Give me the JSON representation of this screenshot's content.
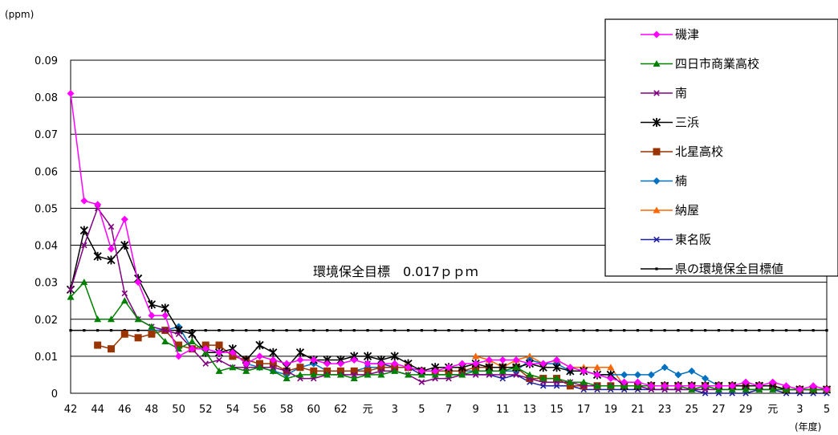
{
  "chart_data": {
    "type": "line",
    "ylabel": "(ppm)",
    "xlabel": "(年度)",
    "ylim": [
      0,
      0.09
    ],
    "y_ticks": [
      "0",
      "0.01",
      "0.02",
      "0.03",
      "0.04",
      "0.05",
      "0.06",
      "0.07",
      "0.08",
      "0.09"
    ],
    "y_tick_values": [
      0,
      0.01,
      0.02,
      0.03,
      0.04,
      0.05,
      0.06,
      0.07,
      0.08,
      0.09
    ],
    "grid": "horizontal",
    "legend_position": "top-right",
    "annotation": "環境保全目標　0.017ｐｐｍ",
    "categories": [
      "42",
      "43",
      "44",
      "45",
      "46",
      "47",
      "48",
      "49",
      "50",
      "51",
      "52",
      "53",
      "54",
      "55",
      "56",
      "57",
      "58",
      "59",
      "60",
      "61",
      "62",
      "63",
      "元",
      "2",
      "3",
      "4",
      "5",
      "6",
      "7",
      "8",
      "9",
      "10",
      "11",
      "12",
      "13",
      "14",
      "15",
      "16",
      "17",
      "18",
      "19",
      "20",
      "21",
      "22",
      "23",
      "24",
      "25",
      "26",
      "27",
      "28",
      "29",
      "30",
      "元",
      "2",
      "3",
      "4",
      "5"
    ],
    "x_tick_labels": [
      "42",
      "44",
      "46",
      "48",
      "50",
      "52",
      "54",
      "56",
      "58",
      "60",
      "62",
      "元",
      "3",
      "5",
      "7",
      "9",
      "11",
      "13",
      "15",
      "17",
      "19",
      "21",
      "23",
      "25",
      "27",
      "29",
      "元",
      "3",
      "5"
    ],
    "series": [
      {
        "name": "磯津",
        "color": "#ff00ff",
        "marker": "diamond",
        "values": [
          0.081,
          0.052,
          0.051,
          0.039,
          0.047,
          0.03,
          0.021,
          0.021,
          0.01,
          0.012,
          0.012,
          0.011,
          0.011,
          0.008,
          0.01,
          0.009,
          0.008,
          0.009,
          0.009,
          0.008,
          0.008,
          0.009,
          0.008,
          0.008,
          0.008,
          0.007,
          0.006,
          0.006,
          0.007,
          0.008,
          0.008,
          0.009,
          0.009,
          0.009,
          0.008,
          0.008,
          0.009,
          0.007,
          0.006,
          0.005,
          0.004,
          0.003,
          0.003,
          0.002,
          0.002,
          0.002,
          0.002,
          0.002,
          0.002,
          0.002,
          0.003,
          0.002,
          0.003,
          0.002,
          0.001,
          0.002,
          0.001
        ]
      },
      {
        "name": "四日市商業高校",
        "color": "#008000",
        "marker": "triangle",
        "values": [
          0.026,
          0.03,
          0.02,
          0.02,
          0.025,
          0.02,
          0.018,
          0.014,
          0.012,
          0.014,
          0.011,
          0.006,
          0.007,
          0.006,
          0.007,
          0.006,
          0.004,
          0.005,
          0.005,
          0.005,
          0.005,
          0.004,
          0.005,
          0.005,
          0.006,
          0.005,
          0.005,
          0.005,
          0.005,
          0.005,
          0.006,
          0.006,
          0.006,
          0.007,
          0.005,
          0.004,
          0.004,
          0.003,
          0.003,
          0.002,
          0.002,
          0.002,
          0.002,
          0.002,
          0.002,
          0.002,
          0.001,
          0.002,
          0.001,
          0.001,
          0.001,
          0.001,
          0.001,
          0.001,
          0.001,
          0.001,
          0.001
        ]
      },
      {
        "name": "南",
        "color": "#800080",
        "marker": "x",
        "values": [
          0.028,
          0.04,
          0.05,
          0.045,
          0.027,
          0.02,
          0.018,
          0.017,
          0.016,
          0.012,
          0.008,
          0.009,
          0.007,
          0.007,
          0.007,
          0.007,
          0.006,
          0.004,
          0.004,
          0.005,
          0.005,
          0.005,
          0.005,
          0.006,
          0.006,
          0.005,
          0.003,
          0.004,
          0.004,
          0.005,
          0.005,
          0.005,
          0.005,
          0.005,
          0.004,
          0.003,
          0.003,
          0.003,
          0.002,
          0.002,
          0.002,
          0.002,
          0.002,
          0.001,
          0.001,
          0.001,
          0.001,
          0.001,
          0.001,
          0.001,
          0.001,
          0.001,
          0.001,
          0.001,
          0.001,
          0.001,
          0.001
        ]
      },
      {
        "name": "三浜",
        "color": "#000000",
        "marker": "star",
        "values": [
          0.028,
          0.044,
          0.037,
          0.036,
          0.04,
          0.031,
          0.024,
          0.023,
          0.017,
          0.016,
          0.011,
          0.011,
          0.012,
          0.009,
          0.013,
          0.011,
          0.007,
          0.011,
          0.009,
          0.009,
          0.009,
          0.01,
          0.01,
          0.009,
          0.01,
          0.008,
          0.006,
          0.007,
          0.007,
          0.007,
          0.008,
          0.007,
          0.007,
          0.007,
          0.008,
          0.007,
          0.007,
          0.006,
          0.006,
          0.005,
          0.005,
          0.002,
          0.002,
          0.002,
          0.002,
          0.002,
          0.002,
          0.002,
          0.002,
          0.002,
          0.002,
          0.002,
          0.002,
          0.001,
          0.001,
          0.001,
          0.001
        ]
      },
      {
        "name": "北星高校",
        "color": "#993300",
        "marker": "square",
        "values": [
          null,
          null,
          0.013,
          0.012,
          0.016,
          0.015,
          0.016,
          0.017,
          0.013,
          0.012,
          0.013,
          0.013,
          0.01,
          0.009,
          0.008,
          0.008,
          0.006,
          0.007,
          0.006,
          0.006,
          0.006,
          0.006,
          0.006,
          0.007,
          0.007,
          0.007,
          0.006,
          0.006,
          0.006,
          0.006,
          0.007,
          0.007,
          0.007,
          0.007,
          0.004,
          0.004,
          0.004,
          0.002,
          0.002,
          0.002,
          0.002,
          0.002,
          0.002,
          0.002,
          0.002,
          0.002,
          0.002,
          0.002,
          0.002,
          0.002,
          0.002,
          0.002,
          0.002,
          0.001,
          0.001,
          0.001,
          0.001
        ]
      },
      {
        "name": "楠",
        "color": "#0070c0",
        "marker": "diamond",
        "values": [
          null,
          null,
          null,
          null,
          null,
          null,
          0.017,
          0.017,
          0.018,
          0.012,
          0.012,
          0.011,
          0.011,
          0.008,
          0.007,
          0.006,
          0.005,
          0.007,
          0.008,
          0.006,
          0.006,
          0.006,
          0.007,
          0.007,
          0.007,
          0.007,
          0.006,
          0.006,
          0.006,
          0.006,
          0.006,
          0.006,
          0.006,
          0.006,
          0.009,
          0.008,
          0.008,
          0.006,
          0.006,
          0.005,
          0.005,
          0.005,
          0.005,
          0.005,
          0.007,
          0.005,
          0.006,
          0.004,
          0.002,
          0.002,
          0.002,
          0.002,
          0.002,
          0.001,
          0.001,
          0.001,
          0.001
        ]
      },
      {
        "name": "納屋",
        "color": "#ff6600",
        "marker": "triangle",
        "values": [
          null,
          null,
          null,
          null,
          null,
          null,
          null,
          null,
          null,
          null,
          null,
          null,
          null,
          null,
          null,
          null,
          null,
          null,
          null,
          null,
          null,
          null,
          null,
          null,
          null,
          null,
          null,
          null,
          null,
          null,
          0.01,
          0.009,
          0.007,
          0.009,
          0.01,
          0.008,
          0.009,
          0.007,
          0.007,
          0.007,
          0.007,
          0.002,
          0.002,
          0.002,
          0.002,
          0.002,
          0.002,
          0.002,
          0.002,
          0.002,
          0.002,
          0.002,
          0.002,
          0.001,
          0.001,
          0.001,
          0.001
        ]
      },
      {
        "name": "東名阪",
        "color": "#1f1f9f",
        "marker": "x",
        "values": [
          null,
          null,
          null,
          null,
          null,
          null,
          null,
          null,
          null,
          null,
          null,
          null,
          null,
          null,
          null,
          null,
          null,
          null,
          null,
          null,
          null,
          null,
          0.008,
          0.008,
          0.007,
          0.007,
          0.005,
          0.005,
          0.005,
          0.005,
          0.005,
          0.005,
          0.004,
          0.005,
          0.003,
          0.002,
          0.002,
          0.002,
          0.001,
          0.001,
          0.001,
          0.001,
          0.001,
          0.001,
          0.001,
          0.001,
          0.001,
          0.0,
          0.0,
          0.0,
          0.0,
          0.001,
          0.001,
          0.0,
          0.0,
          0.0,
          0.0
        ]
      },
      {
        "name": "県の環境保全目標値",
        "color": "#000000",
        "marker": "dot",
        "constant": 0.017
      }
    ]
  }
}
